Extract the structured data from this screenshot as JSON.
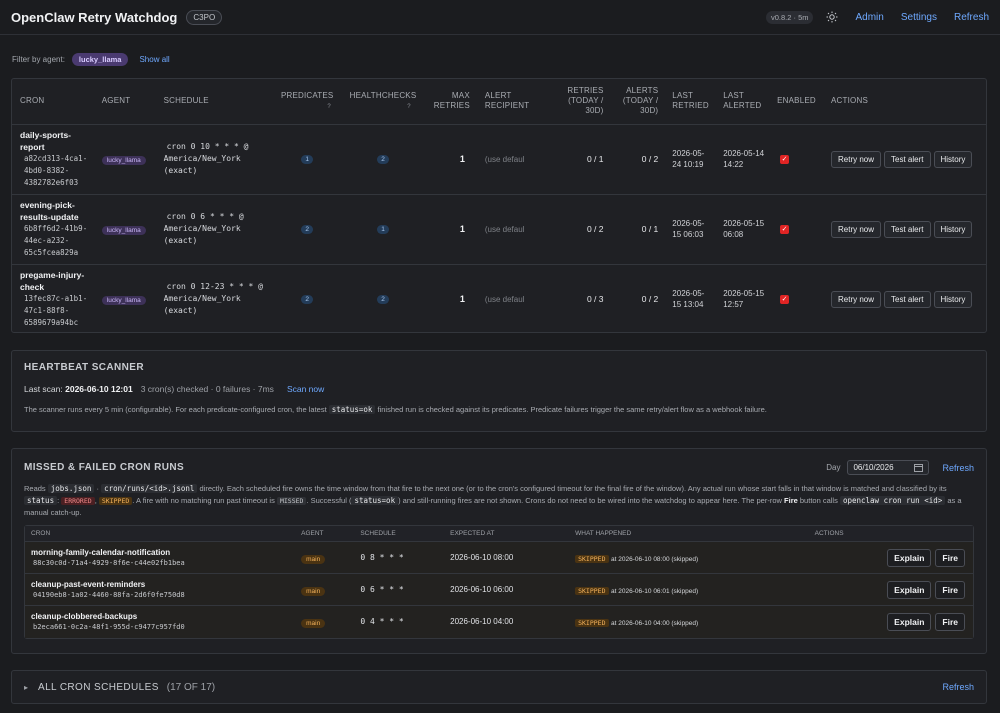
{
  "header": {
    "title": "OpenClaw Retry Watchdog",
    "host_badge": "C3PO",
    "version": "v0.8.2 · 5m",
    "links": [
      "Admin",
      "Settings",
      "Refresh"
    ]
  },
  "filter": {
    "label": "Filter by agent:",
    "agent": "lucky_llama",
    "show_all": "Show all"
  },
  "cron_table": {
    "headers": {
      "cron": "CRON",
      "agent": "AGENT",
      "schedule": "SCHEDULE",
      "predicates": "PREDICATES",
      "healthchecks": "HEALTHCHECKS",
      "max_retries_1": "MAX",
      "max_retries_2": "RETRIES",
      "alert_recipient_1": "ALERT",
      "alert_recipient_2": "RECIPIENT",
      "retries_1": "RETRIES",
      "retries_2": "(TODAY /",
      "retries_3": "30D)",
      "alerts_1": "ALERTS",
      "alerts_2": "(TODAY /",
      "alerts_3": "30D)",
      "last_retried_1": "LAST",
      "last_retried_2": "RETRIED",
      "last_alerted_1": "LAST",
      "last_alerted_2": "ALERTED",
      "enabled": "ENABLED",
      "actions": "ACTIONS",
      "q": "?"
    },
    "rows": [
      {
        "name_lines": [
          "daily-sports-",
          "report"
        ],
        "id_lines": [
          "a82cd313-4ca1-",
          "4bd0-8382-",
          "4382782e6f03"
        ],
        "agent": "lucky_llama",
        "sched_lines": [
          "cron 0 10 * * * @",
          "America/New_York",
          "(exact)"
        ],
        "predicates": "1",
        "healthchecks": "2",
        "max_retries": "1",
        "recipient": "(use defaul",
        "retries": "0 / 1",
        "alerts": "0 / 2",
        "last_retried": [
          "2026-05-",
          "24 10:19"
        ],
        "last_alerted": [
          "2026-05-14",
          "14:22"
        ],
        "enabled": true
      },
      {
        "name_lines": [
          "evening-pick-",
          "results-update"
        ],
        "id_lines": [
          "6b8ff6d2-41b9-",
          "44ec-a232-",
          "65c5fcea829a"
        ],
        "agent": "lucky_llama",
        "sched_lines": [
          "cron 0 6 * * * @",
          "America/New_York",
          "(exact)"
        ],
        "predicates": "2",
        "healthchecks": "1",
        "max_retries": "1",
        "recipient": "(use defaul",
        "retries": "0 / 2",
        "alerts": "0 / 1",
        "last_retried": [
          "2026-05-",
          "15 06:03"
        ],
        "last_alerted": [
          "2026-05-15",
          "06:08"
        ],
        "enabled": true
      },
      {
        "name_lines": [
          "pregame-injury-",
          "check"
        ],
        "id_lines": [
          "13fec87c-a1b1-",
          "47c1-88f8-",
          "6589679a94bc"
        ],
        "agent": "lucky_llama",
        "sched_lines": [
          "cron 0 12-23 * * * @",
          "America/New_York",
          "(exact)"
        ],
        "predicates": "2",
        "healthchecks": "2",
        "max_retries": "1",
        "recipient": "(use defaul",
        "retries": "0 / 3",
        "alerts": "0 / 2",
        "last_retried": [
          "2026-05-",
          "15 13:04"
        ],
        "last_alerted": [
          "2026-05-15",
          "12:57"
        ],
        "enabled": true
      }
    ],
    "buttons": {
      "retry": "Retry now",
      "test": "Test alert",
      "history": "History"
    }
  },
  "heartbeat": {
    "title": "HEARTBEAT SCANNER",
    "last_scan_label": "Last scan:",
    "last_scan_value": "2026-06-10 12:01",
    "stats": "3 cron(s) checked · 0 failures · 7ms",
    "scan_now": "Scan now",
    "desc_before": "The scanner runs every 5 min (configurable). For each predicate-configured cron, the latest",
    "desc_code": "status=ok",
    "desc_after": "finished run is checked against its predicates. Predicate failures trigger the same retry/alert flow as a webhook failure."
  },
  "missed": {
    "title": "MISSED & FAILED CRON RUNS",
    "day_label": "Day",
    "day_value": "06/10/2026",
    "refresh": "Refresh",
    "desc": {
      "p1": "Reads",
      "c1": "jobs.json",
      "p2": "·",
      "c2": "cron/runs/<id>.jsonl",
      "p3": "directly. Each scheduled fire owns the time window from that fire to the next one (or to the cron's configured timeout for the final fire of the window). Any actual run whose start falls in that window is matched and classified by its",
      "c3": "status",
      "p4": ":",
      "t_err": "ERRORED",
      "p5": ",",
      "t_skip": "SKIPPED",
      "p6": ". A fire with no matching run past timeout is",
      "t_miss": "MISSED",
      "p7": ". Successful (",
      "c4": "status=ok",
      "p8": ") and still-running fires are not shown. Crons do not need to be wired into the watchdog to appear here. The per-row",
      "fire_word": "Fire",
      "p9": "button calls",
      "c5": "openclaw cron run <id>",
      "p10": "as a manual catch-up."
    },
    "headers": [
      "CRON",
      "AGENT",
      "SCHEDULE",
      "EXPECTED AT",
      "WHAT HAPPENED",
      "ACTIONS"
    ],
    "rows": [
      {
        "name": "morning-family-calendar-notification",
        "id": "88c30c0d-71a4-4929-8f6e-c44e02fb1bea",
        "agent": "main",
        "schedule": "0 8 * * *",
        "expected": "2026-06-10 08:00",
        "status": "SKIPPED",
        "detail": "at 2026-06-10 08:00 (skipped)"
      },
      {
        "name": "cleanup-past-event-reminders",
        "id": "04190eb8-1a02-4460-88fa-2d6f0fe750d8",
        "agent": "main",
        "schedule": "0 6 * * *",
        "expected": "2026-06-10 06:00",
        "status": "SKIPPED",
        "detail": "at 2026-06-10 06:01 (skipped)"
      },
      {
        "name": "cleanup-clobbered-backups",
        "id": "b2eca661-0c2a-48f1-955d-c9477c957fd0",
        "agent": "main",
        "schedule": "0 4 * * *",
        "expected": "2026-06-10 04:00",
        "status": "SKIPPED",
        "detail": "at 2026-06-10 04:00 (skipped)"
      }
    ],
    "buttons": {
      "explain": "Explain",
      "fire": "Fire"
    }
  },
  "all_schedules": {
    "title": "ALL CRON SCHEDULES",
    "count": "(17 OF 17)",
    "refresh": "Refresh"
  }
}
